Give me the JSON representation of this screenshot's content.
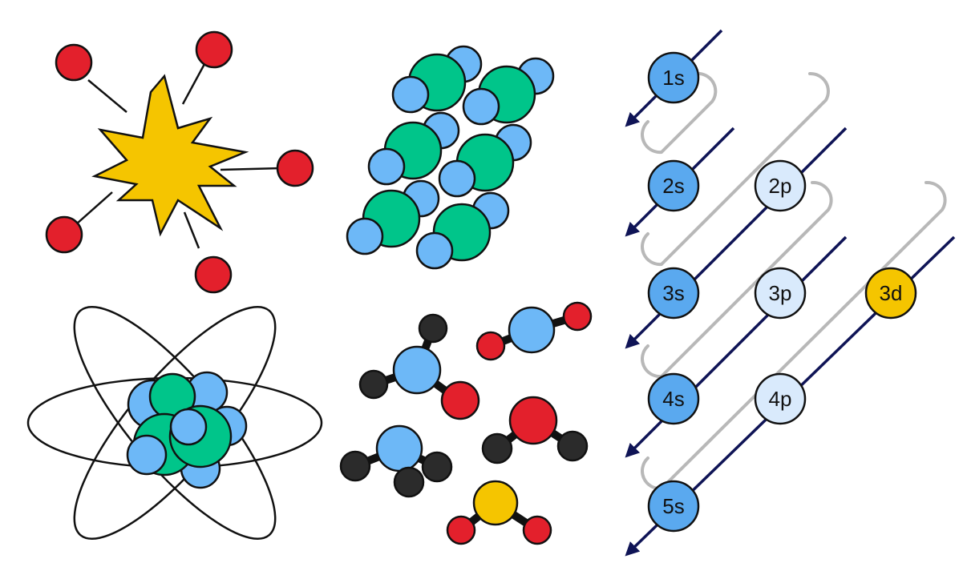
{
  "orbitals": [
    {
      "label": "1s",
      "type": "s"
    },
    {
      "label": "2s",
      "type": "s"
    },
    {
      "label": "2p",
      "type": "p"
    },
    {
      "label": "3s",
      "type": "s"
    },
    {
      "label": "3p",
      "type": "p"
    },
    {
      "label": "3d",
      "type": "d"
    },
    {
      "label": "4s",
      "type": "s"
    },
    {
      "label": "4p",
      "type": "p"
    },
    {
      "label": "5s",
      "type": "s"
    }
  ],
  "colors": {
    "s_orbital": "#5aa9ef",
    "p_orbital": "#d9eafc",
    "d_orbital": "#f5c500",
    "arrow": "#0f1456",
    "connector": "#b8b8b8",
    "electron_red": "#e3202c",
    "electron_blue": "#6db8f7",
    "green_atom": "#00c58a",
    "dark_atom": "#2b2b2b",
    "yellow_atom": "#f5c500",
    "burst": "#f5c500"
  },
  "icons": [
    "explosion-icon",
    "ionic-lattice-icon",
    "atom-model-icon",
    "molecules-icon",
    "aufbau-diagram-icon"
  ]
}
